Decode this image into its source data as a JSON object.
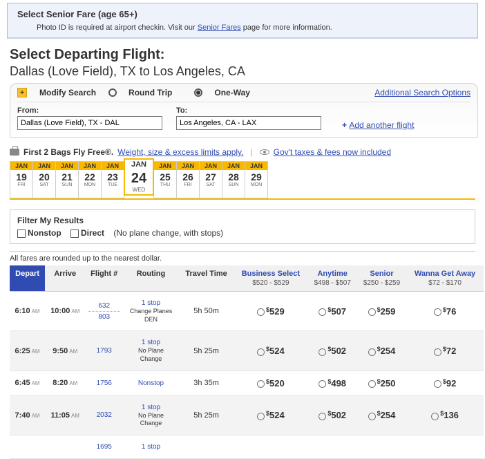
{
  "senior": {
    "title": "Select Senior Fare (age 65+)",
    "note_prefix": "Photo ID is required at airport checkin. Visit our ",
    "note_link": "Senior Fares",
    "note_suffix": " page for more information."
  },
  "heading": {
    "h1": "Select Departing Flight:",
    "h2": "Dallas (Love Field), TX to Los Angeles, CA"
  },
  "search": {
    "modify": "Modify Search",
    "roundtrip": "Round Trip",
    "oneway": "One-Way",
    "addtl": "Additional Search Options",
    "from_label": "From:",
    "from_value": "Dallas (Love Field), TX - DAL",
    "to_label": "To:",
    "to_value": "Los Angeles, CA - LAX",
    "add_flight": "Add another flight"
  },
  "bags": {
    "bold": "First 2 Bags Fly Free®.",
    "link1": "Weight, size & excess limits apply.",
    "link2": "Gov't taxes & fees now included"
  },
  "dates": [
    {
      "mon": "JAN",
      "day": "19",
      "dow": "FRI"
    },
    {
      "mon": "JAN",
      "day": "20",
      "dow": "SAT"
    },
    {
      "mon": "JAN",
      "day": "21",
      "dow": "SUN"
    },
    {
      "mon": "JAN",
      "day": "22",
      "dow": "MON"
    },
    {
      "mon": "JAN",
      "day": "23",
      "dow": "TUE"
    },
    {
      "mon": "JAN",
      "day": "24",
      "dow": "WED"
    },
    {
      "mon": "JAN",
      "day": "25",
      "dow": "THU"
    },
    {
      "mon": "JAN",
      "day": "26",
      "dow": "FRI"
    },
    {
      "mon": "JAN",
      "day": "27",
      "dow": "SAT"
    },
    {
      "mon": "JAN",
      "day": "28",
      "dow": "SUN"
    },
    {
      "mon": "JAN",
      "day": "29",
      "dow": "MON"
    }
  ],
  "selected_date_index": 5,
  "filter": {
    "title": "Filter My Results",
    "nonstop": "Nonstop",
    "direct": "Direct",
    "direct_note": "(No plane change, with stops)"
  },
  "rounded": "All fares are rounded up to the nearest dollar.",
  "columns": {
    "depart": "Depart",
    "arrive": "Arrive",
    "flight": "Flight #",
    "routing": "Routing",
    "travel": "Travel Time",
    "fares": [
      {
        "name": "Business Select",
        "range": "$520 - $529"
      },
      {
        "name": "Anytime",
        "range": "$498 - $507"
      },
      {
        "name": "Senior",
        "range": "$250 - $259"
      },
      {
        "name": "Wanna Get Away",
        "range": "$72 - $170"
      }
    ]
  },
  "flights": [
    {
      "dep": "6:10",
      "dep_m": "AM",
      "arr": "10:00",
      "arr_m": "AM",
      "num": [
        "632",
        "803"
      ],
      "route_top": "1 stop",
      "route_mid": "Change Planes",
      "route_sub": "DEN",
      "time": "5h 50m",
      "prices": [
        "529",
        "507",
        "259",
        "76"
      ],
      "alt": false
    },
    {
      "dep": "6:25",
      "dep_m": "AM",
      "arr": "9:50",
      "arr_m": "AM",
      "num": [
        "1793"
      ],
      "route_top": "1 stop",
      "route_mid": "No Plane",
      "route_sub": "Change",
      "time": "5h 25m",
      "prices": [
        "524",
        "502",
        "254",
        "72"
      ],
      "alt": true
    },
    {
      "dep": "6:45",
      "dep_m": "AM",
      "arr": "8:20",
      "arr_m": "AM",
      "num": [
        "1756"
      ],
      "route_top": "Nonstop",
      "route_mid": "",
      "route_sub": "",
      "time": "3h 35m",
      "prices": [
        "520",
        "498",
        "250",
        "92"
      ],
      "alt": false
    },
    {
      "dep": "7:40",
      "dep_m": "AM",
      "arr": "11:05",
      "arr_m": "AM",
      "num": [
        "2032"
      ],
      "route_top": "1 stop",
      "route_mid": "No Plane",
      "route_sub": "Change",
      "time": "5h 25m",
      "prices": [
        "524",
        "502",
        "254",
        "136"
      ],
      "alt": true
    },
    {
      "dep": "",
      "dep_m": "",
      "arr": "",
      "arr_m": "",
      "num": [
        "1695"
      ],
      "route_top": "1 stop",
      "route_mid": "",
      "route_sub": "",
      "time": "",
      "prices": [
        "",
        "",
        "",
        ""
      ],
      "alt": false
    }
  ]
}
